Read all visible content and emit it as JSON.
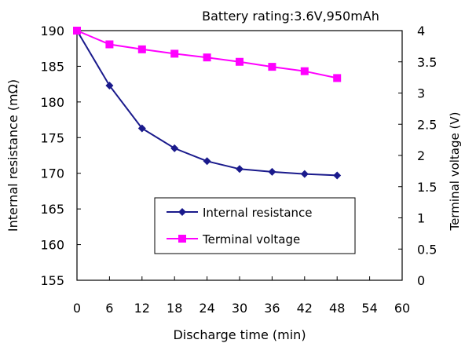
{
  "chart_data": {
    "type": "line",
    "title": "Battery rating:3.6V,950mAh",
    "xlabel": "Discharge time (min)",
    "ylabel_left": "Internal resistance (mΩ)",
    "ylabel_right": "Terminal voltage (V)",
    "xlim": [
      0,
      60
    ],
    "ylim_left": [
      155,
      190
    ],
    "ylim_right": [
      0,
      4
    ],
    "x_ticks": [
      0,
      6,
      12,
      18,
      24,
      30,
      36,
      42,
      48,
      54,
      60
    ],
    "y_left_ticks": [
      155,
      160,
      165,
      170,
      175,
      180,
      185,
      190
    ],
    "y_right_ticks": [
      0,
      0.5,
      1,
      1.5,
      2,
      2.5,
      3,
      3.5,
      4
    ],
    "grid": false,
    "legend_position": "lower-center",
    "x": [
      0,
      6,
      12,
      18,
      24,
      30,
      36,
      42,
      48
    ],
    "series": [
      {
        "name": "Internal resistance",
        "axis": "left",
        "color": "#1a1a8c",
        "marker": "diamond",
        "values": [
          190,
          182.3,
          176.3,
          173.5,
          171.7,
          170.6,
          170.2,
          169.9,
          169.7
        ]
      },
      {
        "name": "Terminal voltage",
        "axis": "right",
        "color": "#ff00ff",
        "marker": "square",
        "values": [
          4.0,
          3.78,
          3.7,
          3.63,
          3.57,
          3.5,
          3.42,
          3.35,
          3.24
        ]
      }
    ]
  }
}
